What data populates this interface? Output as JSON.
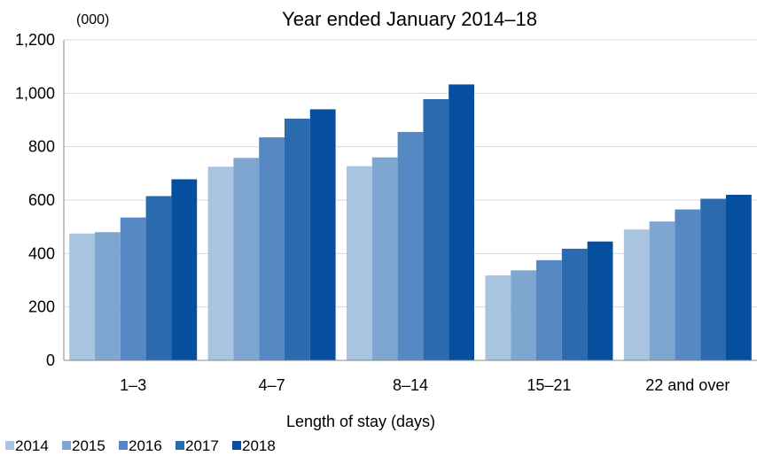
{
  "chart_data": {
    "type": "bar",
    "title": "Year ended January 2014–18",
    "unit_label": "(000)",
    "xlabel": "Length of  stay (days)",
    "ylabel": "",
    "ylim": [
      0,
      1200
    ],
    "yticks": [
      0,
      200,
      400,
      600,
      800,
      1000,
      1200
    ],
    "ytick_labels": [
      "0",
      "200",
      "400",
      "600",
      "800",
      "1,000",
      "1,200"
    ],
    "categories": [
      "1–3",
      "4–7",
      "8–14",
      "15–21",
      "22 and over"
    ],
    "series": [
      {
        "name": "2014",
        "color": "#a9c4e0",
        "values": [
          475,
          725,
          727,
          318,
          490
        ]
      },
      {
        "name": "2015",
        "color": "#7fa6d0",
        "values": [
          480,
          758,
          760,
          337,
          520
        ]
      },
      {
        "name": "2016",
        "color": "#5688c3",
        "values": [
          535,
          835,
          855,
          375,
          565
        ]
      },
      {
        "name": "2017",
        "color": "#2c6ab0",
        "values": [
          615,
          905,
          978,
          418,
          605
        ]
      },
      {
        "name": "2018",
        "color": "#064e9e",
        "values": [
          678,
          940,
          1033,
          445,
          620
        ]
      }
    ],
    "grid": true,
    "legend_position": "bottom-left"
  }
}
